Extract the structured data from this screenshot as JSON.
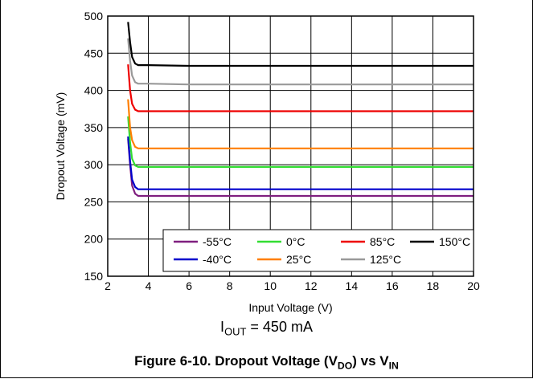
{
  "chart_data": {
    "type": "line",
    "xlabel": "Input Voltage (V)",
    "ylabel": "Dropout Voltage (mV)",
    "xlim": [
      2,
      20
    ],
    "ylim": [
      150,
      500
    ],
    "xticks": [
      2,
      4,
      6,
      8,
      10,
      12,
      14,
      16,
      18,
      20
    ],
    "yticks": [
      150,
      200,
      250,
      300,
      350,
      400,
      450,
      500
    ],
    "grid": true,
    "legend_position": "bottom-right",
    "condition": {
      "prefix": "I",
      "sub": "OUT",
      "suffix": " = 450 mA"
    },
    "series": [
      {
        "name": "-55°C",
        "color": "#7f1f7f",
        "x": [
          3,
          3.1,
          3.2,
          3.35,
          3.5,
          4,
          6,
          10,
          15,
          20
        ],
        "y": [
          335,
          300,
          272,
          261,
          258,
          258,
          258,
          258,
          258,
          258
        ]
      },
      {
        "name": "-40°C",
        "color": "#0000cc",
        "x": [
          3,
          3.1,
          3.2,
          3.35,
          3.5,
          4,
          6,
          10,
          15,
          20
        ],
        "y": [
          338,
          305,
          280,
          270,
          267,
          267,
          267,
          267,
          267,
          267
        ]
      },
      {
        "name": "0°C",
        "color": "#33dd33",
        "x": [
          3,
          3.1,
          3.2,
          3.35,
          3.5,
          4,
          6,
          10,
          15,
          20
        ],
        "y": [
          365,
          330,
          308,
          299,
          297,
          297,
          297,
          297,
          297,
          297
        ]
      },
      {
        "name": "25°C",
        "color": "#ff7f00",
        "x": [
          3,
          3.1,
          3.2,
          3.35,
          3.5,
          4,
          6,
          10,
          15,
          20
        ],
        "y": [
          388,
          350,
          333,
          324,
          322,
          322,
          322,
          322,
          322,
          322
        ]
      },
      {
        "name": "85°C",
        "color": "#ee0000",
        "x": [
          3,
          3.1,
          3.2,
          3.35,
          3.5,
          4,
          6,
          10,
          15,
          20
        ],
        "y": [
          435,
          400,
          382,
          374,
          372,
          372,
          372,
          372,
          372,
          372
        ]
      },
      {
        "name": "125°C",
        "color": "#999999",
        "x": [
          3,
          3.1,
          3.2,
          3.35,
          3.5,
          4,
          6,
          10,
          15,
          20
        ],
        "y": [
          470,
          440,
          420,
          411,
          409,
          409,
          408,
          408,
          408,
          408
        ]
      },
      {
        "name": "150°C",
        "color": "#000000",
        "x": [
          3,
          3.1,
          3.2,
          3.35,
          3.5,
          4,
          6,
          10,
          15,
          20
        ],
        "y": [
          492,
          465,
          445,
          436,
          434,
          434,
          433,
          433,
          433,
          433
        ]
      }
    ]
  },
  "figure": {
    "caption_prefix": "Figure 6-10. Dropout Voltage (V",
    "caption_sub1": "DO",
    "caption_mid": ") vs V",
    "caption_sub2": "IN"
  }
}
